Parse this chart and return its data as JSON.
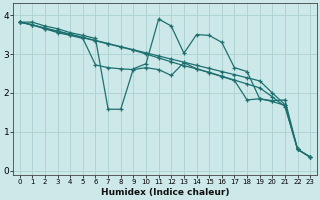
{
  "xlabel": "Humidex (Indice chaleur)",
  "ylabel": "",
  "xlim": [
    -0.5,
    23.5
  ],
  "ylim": [
    -0.1,
    4.3
  ],
  "yticks": [
    0,
    1,
    2,
    3,
    4
  ],
  "xticks": [
    0,
    1,
    2,
    3,
    4,
    5,
    6,
    7,
    8,
    9,
    10,
    11,
    12,
    13,
    14,
    15,
    16,
    17,
    18,
    19,
    20,
    21,
    22,
    23
  ],
  "bg_color": "#cde8e8",
  "line_color": "#1e7070",
  "grid_color": "#b0d4d4",
  "lines": [
    {
      "x": [
        0,
        1,
        2,
        3,
        4,
        5,
        6,
        7,
        8,
        9,
        10,
        11,
        12,
        13,
        14,
        15,
        16,
        17,
        18,
        19,
        20,
        21,
        22,
        23
      ],
      "y": [
        3.82,
        3.82,
        3.72,
        3.65,
        3.55,
        3.48,
        3.4,
        1.58,
        1.58,
        2.62,
        2.75,
        3.9,
        3.72,
        3.02,
        3.5,
        3.48,
        3.3,
        2.65,
        2.55,
        1.85,
        1.8,
        1.82,
        0.55,
        0.35
      ]
    },
    {
      "x": [
        0,
        1,
        2,
        3,
        4,
        5,
        6,
        7,
        8,
        9,
        10,
        11,
        12,
        13,
        14,
        15,
        16,
        17,
        18,
        19,
        20,
        21,
        22,
        23
      ],
      "y": [
        3.82,
        3.75,
        3.67,
        3.59,
        3.51,
        3.43,
        3.35,
        3.27,
        3.19,
        3.11,
        3.03,
        2.95,
        2.87,
        2.79,
        2.71,
        2.63,
        2.55,
        2.47,
        2.39,
        2.31,
        2.0,
        1.7,
        0.55,
        0.35
      ]
    },
    {
      "x": [
        0,
        1,
        2,
        3,
        4,
        5,
        6,
        7,
        8,
        9,
        10,
        11,
        12,
        13,
        14,
        15,
        16,
        17,
        18,
        19,
        20,
        21,
        22,
        23
      ],
      "y": [
        3.82,
        3.75,
        3.65,
        3.58,
        3.5,
        3.42,
        3.34,
        3.26,
        3.18,
        3.1,
        3.0,
        2.9,
        2.8,
        2.7,
        2.62,
        2.53,
        2.43,
        2.33,
        2.23,
        2.13,
        1.9,
        1.65,
        0.55,
        0.35
      ]
    },
    {
      "x": [
        0,
        1,
        2,
        3,
        4,
        5,
        6,
        7,
        8,
        9,
        10,
        11,
        12,
        13,
        14,
        15,
        16,
        17,
        18,
        19,
        20,
        21,
        22,
        23
      ],
      "y": [
        3.82,
        3.75,
        3.65,
        3.55,
        3.48,
        3.4,
        2.72,
        2.65,
        2.62,
        2.6,
        2.65,
        2.6,
        2.45,
        2.78,
        2.62,
        2.52,
        2.42,
        2.32,
        1.82,
        1.85,
        1.78,
        1.68,
        0.55,
        0.35
      ]
    }
  ]
}
